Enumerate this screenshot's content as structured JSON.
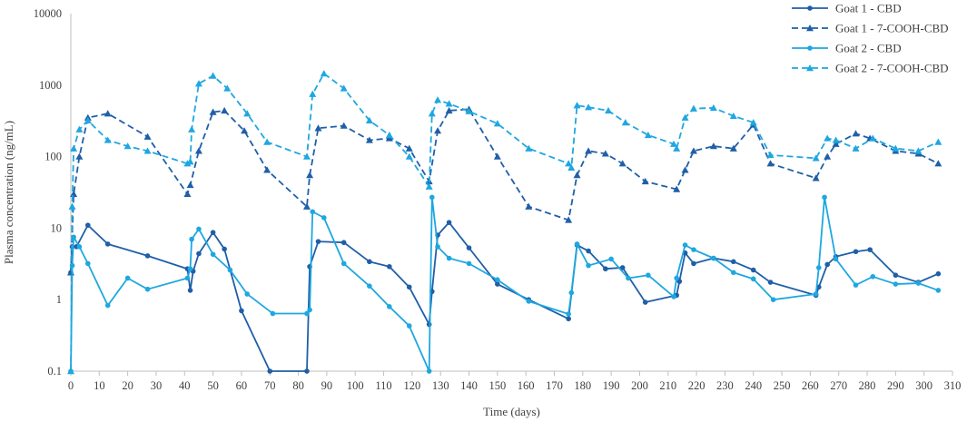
{
  "chart_data": {
    "type": "line",
    "xlabel": "Time (days)",
    "ylabel": "Plasma concentration (ng/mL)",
    "yscale": "log",
    "xlim": [
      0,
      310
    ],
    "ylim": [
      0.1,
      10000
    ],
    "x_ticks": [
      0,
      10,
      20,
      30,
      40,
      50,
      60,
      70,
      80,
      90,
      100,
      110,
      120,
      130,
      140,
      150,
      160,
      170,
      180,
      190,
      200,
      210,
      220,
      230,
      240,
      250,
      260,
      270,
      280,
      290,
      300,
      310
    ],
    "y_ticks": [
      0.1,
      1,
      10,
      100,
      1000,
      10000
    ],
    "y_tick_labels": [
      "0.1",
      "1",
      "10",
      "100",
      "1000",
      "10000"
    ],
    "grid": false,
    "legend_position": "top-right",
    "series": [
      {
        "name": "Goat 1 - CBD",
        "color": "#1f5fa8",
        "dash": "solid",
        "marker": "circle",
        "points": [
          [
            0,
            2.4
          ],
          [
            0.5,
            5.5
          ],
          [
            2,
            5.5
          ],
          [
            6,
            11
          ],
          [
            13,
            6
          ],
          [
            27,
            4.1
          ],
          [
            41,
            2.7
          ],
          [
            42,
            1.35
          ],
          [
            43,
            2.5
          ],
          [
            45,
            4.4
          ],
          [
            50,
            8.7
          ],
          [
            54,
            5.1
          ],
          [
            60,
            0.7
          ],
          [
            70,
            0.1
          ],
          [
            83,
            0.1
          ],
          [
            84,
            2.9
          ],
          [
            87,
            6.5
          ],
          [
            96,
            6.3
          ],
          [
            105,
            3.4
          ],
          [
            112,
            2.9
          ],
          [
            119,
            1.5
          ],
          [
            126,
            0.45
          ],
          [
            127,
            1.3
          ],
          [
            129,
            8
          ],
          [
            133,
            12
          ],
          [
            140,
            5.3
          ],
          [
            150,
            1.65
          ],
          [
            161,
            1.0
          ],
          [
            175,
            0.54
          ],
          [
            178,
            5.8
          ],
          [
            182,
            4.8
          ],
          [
            188,
            2.7
          ],
          [
            194,
            2.8
          ],
          [
            202,
            0.92
          ],
          [
            213,
            1.15
          ],
          [
            214,
            1.8
          ],
          [
            216,
            4.5
          ],
          [
            219,
            3.2
          ],
          [
            226,
            3.8
          ],
          [
            233,
            3.4
          ],
          [
            240,
            2.6
          ],
          [
            246,
            1.75
          ],
          [
            262,
            1.15
          ],
          [
            263,
            1.5
          ],
          [
            266,
            3.1
          ],
          [
            269,
            4.0
          ],
          [
            276,
            4.7
          ],
          [
            281,
            5.0
          ],
          [
            290,
            2.2
          ],
          [
            298,
            1.75
          ],
          [
            305,
            2.3
          ]
        ]
      },
      {
        "name": "Goat 1 - 7-COOH-CBD",
        "color": "#1f5fa8",
        "dash": "dashed",
        "marker": "triangle",
        "points": [
          [
            0,
            2.4
          ],
          [
            1,
            30
          ],
          [
            3,
            100
          ],
          [
            6,
            350
          ],
          [
            13,
            400
          ],
          [
            27,
            190
          ],
          [
            41,
            30
          ],
          [
            42,
            40
          ],
          [
            45,
            120
          ],
          [
            50,
            420
          ],
          [
            54,
            440
          ],
          [
            61,
            230
          ],
          [
            69,
            65
          ],
          [
            83,
            20
          ],
          [
            84,
            55
          ],
          [
            87,
            250
          ],
          [
            96,
            270
          ],
          [
            105,
            170
          ],
          [
            112,
            180
          ],
          [
            119,
            130
          ],
          [
            126,
            45
          ],
          [
            129,
            230
          ],
          [
            133,
            440
          ],
          [
            140,
            460
          ],
          [
            150,
            100
          ],
          [
            161,
            20
          ],
          [
            175,
            13
          ],
          [
            178,
            55
          ],
          [
            182,
            120
          ],
          [
            188,
            110
          ],
          [
            194,
            80
          ],
          [
            202,
            45
          ],
          [
            213,
            35
          ],
          [
            216,
            65
          ],
          [
            219,
            120
          ],
          [
            226,
            140
          ],
          [
            233,
            130
          ],
          [
            240,
            280
          ],
          [
            246,
            80
          ],
          [
            262,
            50
          ],
          [
            266,
            100
          ],
          [
            269,
            150
          ],
          [
            276,
            210
          ],
          [
            281,
            180
          ],
          [
            290,
            120
          ],
          [
            298,
            110
          ],
          [
            305,
            80
          ]
        ]
      },
      {
        "name": "Goat 2 - CBD",
        "color": "#1ea7e0",
        "dash": "solid",
        "marker": "circle",
        "points": [
          [
            0,
            0.1
          ],
          [
            0.5,
            3.0
          ],
          [
            1,
            7.5
          ],
          [
            3,
            5.5
          ],
          [
            6,
            3.2
          ],
          [
            13,
            0.83
          ],
          [
            20,
            2.0
          ],
          [
            27,
            1.4
          ],
          [
            41,
            2.0
          ],
          [
            42,
            2.7
          ],
          [
            42.5,
            7.0
          ],
          [
            45,
            9.7
          ],
          [
            50,
            4.3
          ],
          [
            56,
            2.6
          ],
          [
            62,
            1.2
          ],
          [
            71,
            0.64
          ],
          [
            83,
            0.64
          ],
          [
            84,
            0.72
          ],
          [
            85,
            17
          ],
          [
            89,
            14
          ],
          [
            96,
            3.2
          ],
          [
            105,
            1.55
          ],
          [
            112,
            0.8
          ],
          [
            119,
            0.43
          ],
          [
            126,
            0.1
          ],
          [
            127,
            27
          ],
          [
            129,
            5.5
          ],
          [
            133,
            3.8
          ],
          [
            140,
            3.2
          ],
          [
            150,
            1.9
          ],
          [
            161,
            0.95
          ],
          [
            175,
            0.63
          ],
          [
            176,
            1.25
          ],
          [
            178,
            6
          ],
          [
            182,
            3.0
          ],
          [
            190,
            3.7
          ],
          [
            196,
            2.0
          ],
          [
            203,
            2.2
          ],
          [
            212,
            1.1
          ],
          [
            213,
            2.0
          ],
          [
            216,
            5.8
          ],
          [
            219,
            5.0
          ],
          [
            226,
            3.8
          ],
          [
            233,
            2.4
          ],
          [
            240,
            1.95
          ],
          [
            247,
            1.0
          ],
          [
            262,
            1.2
          ],
          [
            263,
            2.8
          ],
          [
            265,
            27
          ],
          [
            269,
            3.7
          ],
          [
            276,
            1.6
          ],
          [
            282,
            2.1
          ],
          [
            290,
            1.65
          ],
          [
            298,
            1.7
          ],
          [
            305,
            1.35
          ]
        ]
      },
      {
        "name": "Goat 2 - 7-COOH-CBD",
        "color": "#1ea7e0",
        "dash": "dashed",
        "marker": "triangle",
        "points": [
          [
            0,
            0.1
          ],
          [
            0.5,
            20
          ],
          [
            1,
            130
          ],
          [
            3,
            240
          ],
          [
            6,
            320
          ],
          [
            13,
            170
          ],
          [
            20,
            140
          ],
          [
            27,
            120
          ],
          [
            41,
            80
          ],
          [
            42,
            85
          ],
          [
            42.5,
            240
          ],
          [
            45,
            1050
          ],
          [
            50,
            1350
          ],
          [
            55,
            900
          ],
          [
            62,
            400
          ],
          [
            69,
            160
          ],
          [
            83,
            100
          ],
          [
            85,
            750
          ],
          [
            89,
            1450
          ],
          [
            96,
            900
          ],
          [
            105,
            320
          ],
          [
            112,
            200
          ],
          [
            119,
            100
          ],
          [
            126,
            38
          ],
          [
            127,
            400
          ],
          [
            129,
            620
          ],
          [
            133,
            550
          ],
          [
            140,
            430
          ],
          [
            150,
            290
          ],
          [
            161,
            130
          ],
          [
            175,
            80
          ],
          [
            176,
            70
          ],
          [
            178,
            520
          ],
          [
            182,
            490
          ],
          [
            189,
            440
          ],
          [
            195,
            300
          ],
          [
            203,
            200
          ],
          [
            212,
            150
          ],
          [
            213,
            130
          ],
          [
            216,
            350
          ],
          [
            219,
            470
          ],
          [
            226,
            480
          ],
          [
            233,
            370
          ],
          [
            240,
            300
          ],
          [
            246,
            105
          ],
          [
            262,
            95
          ],
          [
            266,
            180
          ],
          [
            269,
            170
          ],
          [
            276,
            130
          ],
          [
            282,
            180
          ],
          [
            290,
            130
          ],
          [
            298,
            120
          ],
          [
            305,
            160
          ]
        ]
      }
    ]
  }
}
